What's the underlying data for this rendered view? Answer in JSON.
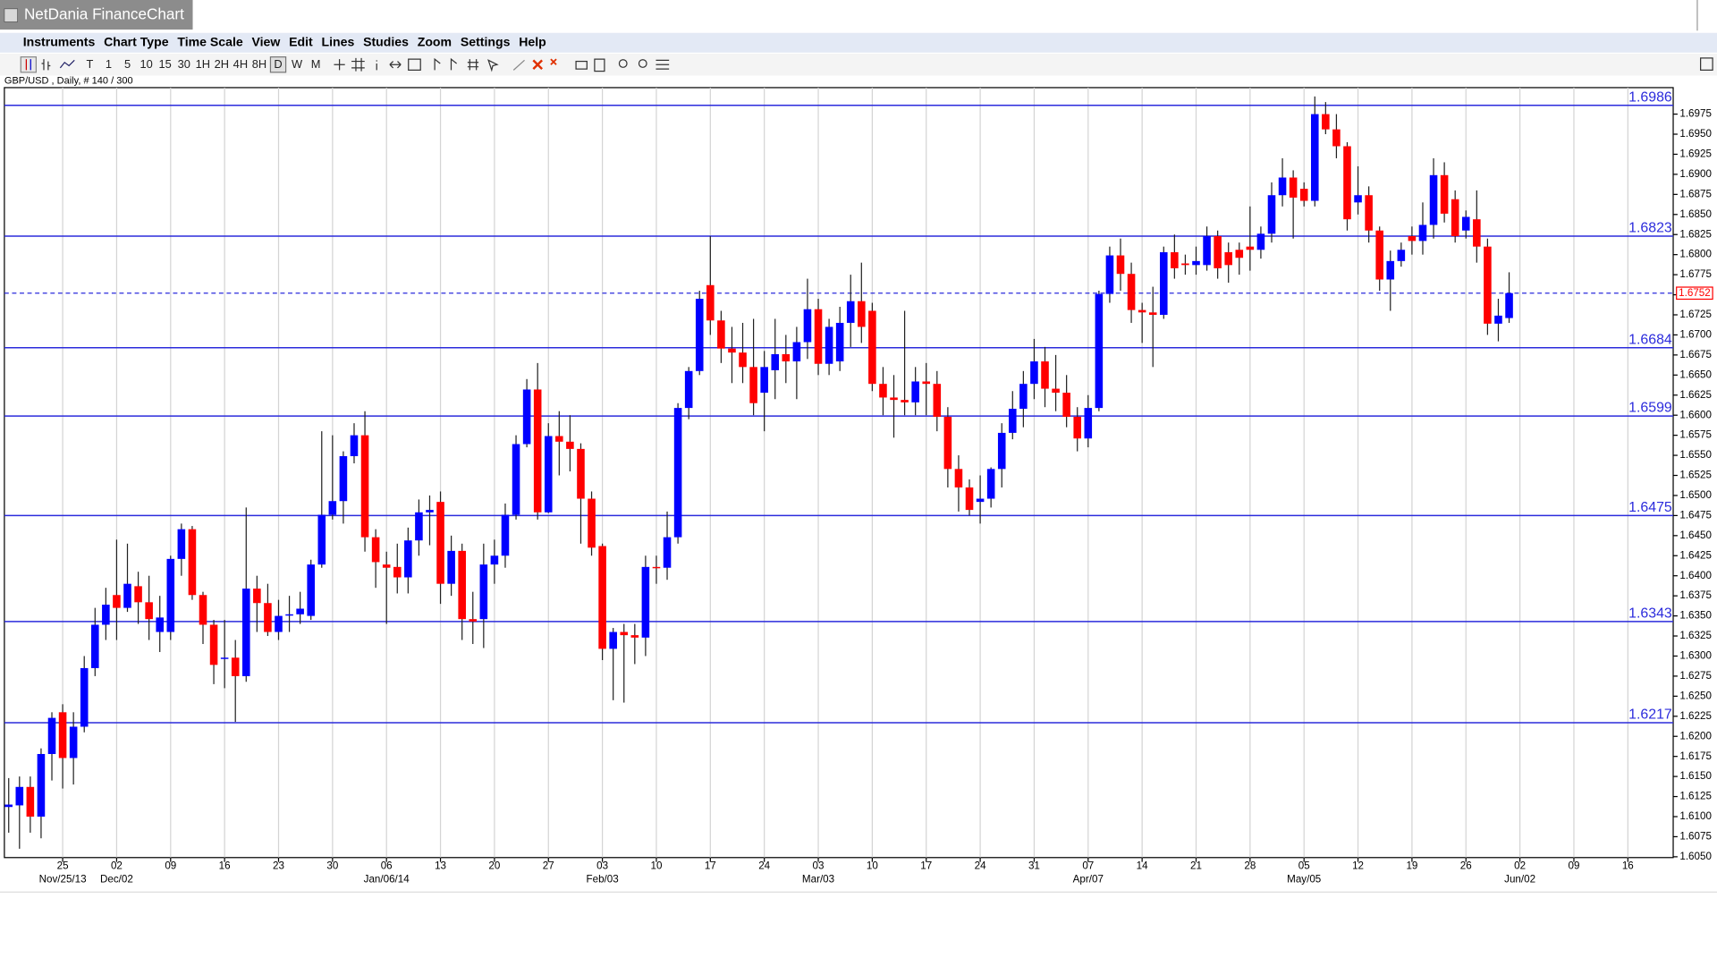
{
  "title_bar": "NetDania FinanceChart",
  "menu": [
    "Instruments",
    "Chart Type",
    "Time Scale",
    "View",
    "Edit",
    "Lines",
    "Studies",
    "Zoom",
    "Settings",
    "Help"
  ],
  "toolbar": [
    "T",
    "1",
    "5",
    "10",
    "15",
    "30",
    "1H",
    "2H",
    "4H",
    "8H",
    "D",
    "W",
    "M"
  ],
  "chart_data": {
    "type": "candlestick",
    "title": "GBP/USD , Daily, # 140 / 300",
    "up_color": "#0000ff",
    "down_color": "#ff0000",
    "line_color": "#2b2bdc",
    "open": [
      1.6112,
      1.6114,
      1.6137,
      1.61,
      1.6178,
      1.623,
      1.6173,
      1.6212,
      1.6285,
      1.6339,
      1.6376,
      1.636,
      1.6387,
      1.6367,
      1.633,
      1.633,
      1.6421,
      1.6458,
      1.6376,
      1.6339,
      1.6298,
      1.6298,
      1.6275,
      1.6384,
      1.6366,
      1.633,
      1.6352,
      1.6352,
      1.635,
      1.6414,
      1.6476,
      1.6493,
      1.6549,
      1.6575,
      1.6448,
      1.6414,
      1.6411,
      1.6398,
      1.6444,
      1.6479,
      1.6492,
      1.639,
      1.6431,
      1.6346,
      1.6346,
      1.6414,
      1.6425,
      1.6476,
      1.6564,
      1.6632,
      1.6479,
      1.6574,
      1.6567,
      1.6558,
      1.6496,
      1.6437,
      1.6309,
      1.633,
      1.6326,
      1.6323,
      1.6411,
      1.641,
      1.6448,
      1.6609,
      1.6655,
      1.6762,
      1.6718,
      1.6683,
      1.6678,
      1.666,
      1.6628,
      1.6656,
      1.6676,
      1.6667,
      1.6691,
      1.6732,
      1.6664,
      1.6667,
      1.6715,
      1.6742,
      1.673,
      1.6639,
      1.6622,
      1.6619,
      1.6616,
      1.6642,
      1.6639,
      1.6598,
      1.6533,
      1.651,
      1.6492,
      1.6496,
      1.6533,
      1.6578,
      1.6608,
      1.6639,
      1.6667,
      1.6633,
      1.6628,
      1.6598,
      1.6571,
      1.6609,
      1.6751,
      1.6799,
      1.6776,
      1.6731,
      1.6728,
      1.6725,
      1.6803,
      1.6789,
      1.6787,
      1.6787,
      1.6823,
      1.6803,
      1.6806,
      1.681,
      1.6806,
      1.6826,
      1.6874,
      1.6896,
      1.6882,
      1.6867,
      1.6975,
      1.6956,
      1.6935,
      1.6865,
      1.6874,
      1.683,
      1.6769,
      1.6792,
      1.6823,
      1.6817,
      1.6837,
      1.6899,
      1.6869,
      1.683,
      1.6844,
      1.681,
      1.6714,
      1.6721
    ],
    "high": [
      1.6148,
      1.615,
      1.615,
      1.6185,
      1.623,
      1.624,
      1.623,
      1.63,
      1.636,
      1.6385,
      1.6445,
      1.644,
      1.6405,
      1.64,
      1.6375,
      1.6425,
      1.6465,
      1.6462,
      1.638,
      1.6345,
      1.6345,
      1.632,
      1.6485,
      1.64,
      1.639,
      1.637,
      1.6375,
      1.638,
      1.642,
      1.658,
      1.6575,
      1.6555,
      1.659,
      1.6605,
      1.6458,
      1.643,
      1.644,
      1.646,
      1.6495,
      1.65,
      1.6505,
      1.645,
      1.644,
      1.638,
      1.644,
      1.6445,
      1.649,
      1.6575,
      1.6645,
      1.6665,
      1.659,
      1.6605,
      1.66,
      1.6565,
      1.6505,
      1.644,
      1.6335,
      1.634,
      1.634,
      1.6425,
      1.6425,
      1.648,
      1.6615,
      1.666,
      1.6755,
      1.6823,
      1.673,
      1.671,
      1.6715,
      1.672,
      1.668,
      1.672,
      1.67,
      1.671,
      1.677,
      1.6745,
      1.672,
      1.6735,
      1.6775,
      1.679,
      1.674,
      1.666,
      1.665,
      1.673,
      1.666,
      1.6665,
      1.6655,
      1.661,
      1.655,
      1.652,
      1.6525,
      1.6535,
      1.659,
      1.663,
      1.6655,
      1.6695,
      1.6685,
      1.6675,
      1.665,
      1.661,
      1.6625,
      1.6755,
      1.681,
      1.682,
      1.679,
      1.674,
      1.676,
      1.681,
      1.6825,
      1.68,
      1.681,
      1.6835,
      1.683,
      1.6815,
      1.6815,
      1.686,
      1.6835,
      1.689,
      1.692,
      1.6905,
      1.689,
      1.6997,
      1.699,
      1.6975,
      1.694,
      1.691,
      1.6885,
      1.6835,
      1.6805,
      1.6815,
      1.6835,
      1.6865,
      1.692,
      1.6915,
      1.688,
      1.6855,
      1.688,
      1.682,
      1.6745,
      1.6778
    ],
    "low": [
      1.608,
      1.606,
      1.608,
      1.6073,
      1.6145,
      1.6135,
      1.614,
      1.6205,
      1.6275,
      1.632,
      1.632,
      1.6355,
      1.634,
      1.632,
      1.6305,
      1.632,
      1.64,
      1.637,
      1.6315,
      1.6265,
      1.626,
      1.6218,
      1.6268,
      1.633,
      1.6325,
      1.632,
      1.633,
      1.634,
      1.6345,
      1.641,
      1.647,
      1.6465,
      1.654,
      1.643,
      1.6385,
      1.634,
      1.6378,
      1.6378,
      1.6425,
      1.6438,
      1.6365,
      1.6375,
      1.632,
      1.6315,
      1.631,
      1.639,
      1.641,
      1.647,
      1.656,
      1.647,
      1.6478,
      1.6525,
      1.653,
      1.644,
      1.6425,
      1.6295,
      1.6245,
      1.6242,
      1.629,
      1.63,
      1.639,
      1.6395,
      1.644,
      1.6595,
      1.665,
      1.67,
      1.6665,
      1.664,
      1.664,
      1.66,
      1.658,
      1.662,
      1.664,
      1.662,
      1.667,
      1.665,
      1.665,
      1.6655,
      1.6685,
      1.669,
      1.663,
      1.66,
      1.6572,
      1.66,
      1.66,
      1.66,
      1.658,
      1.651,
      1.648,
      1.6475,
      1.6465,
      1.6485,
      1.651,
      1.657,
      1.6585,
      1.662,
      1.661,
      1.6605,
      1.6585,
      1.6555,
      1.656,
      1.6605,
      1.674,
      1.6755,
      1.6715,
      1.669,
      1.666,
      1.672,
      1.677,
      1.6775,
      1.6775,
      1.678,
      1.677,
      1.6765,
      1.6775,
      1.678,
      1.6795,
      1.6815,
      1.686,
      1.682,
      1.686,
      1.686,
      1.695,
      1.692,
      1.683,
      1.685,
      1.6815,
      1.6755,
      1.673,
      1.6785,
      1.68,
      1.68,
      1.682,
      1.684,
      1.6815,
      1.682,
      1.679,
      1.67,
      1.6692,
      1.6715
    ],
    "close": [
      1.6115,
      1.6137,
      1.61,
      1.6178,
      1.6223,
      1.6173,
      1.6212,
      1.6285,
      1.6339,
      1.6364,
      1.636,
      1.639,
      1.6367,
      1.6346,
      1.6348,
      1.6421,
      1.6458,
      1.6376,
      1.6339,
      1.6289,
      1.6298,
      1.6275,
      1.6384,
      1.6366,
      1.633,
      1.635,
      1.6352,
      1.6359,
      1.6414,
      1.6476,
      1.6493,
      1.6549,
      1.6575,
      1.6448,
      1.6417,
      1.641,
      1.6398,
      1.6444,
      1.6479,
      1.6482,
      1.639,
      1.6431,
      1.6346,
      1.6343,
      1.6414,
      1.6425,
      1.6476,
      1.6564,
      1.6632,
      1.6479,
      1.6574,
      1.6567,
      1.6558,
      1.6496,
      1.6435,
      1.6309,
      1.633,
      1.6326,
      1.6323,
      1.6411,
      1.641,
      1.6448,
      1.6609,
      1.6655,
      1.6745,
      1.6718,
      1.6683,
      1.6678,
      1.666,
      1.6615,
      1.666,
      1.6676,
      1.6667,
      1.6691,
      1.6732,
      1.6664,
      1.671,
      1.6715,
      1.6742,
      1.671,
      1.6639,
      1.6622,
      1.6619,
      1.6616,
      1.6642,
      1.6639,
      1.6598,
      1.6533,
      1.651,
      1.6482,
      1.6496,
      1.6533,
      1.6578,
      1.6608,
      1.6639,
      1.6667,
      1.6633,
      1.6628,
      1.6598,
      1.6571,
      1.6609,
      1.6751,
      1.6799,
      1.6776,
      1.6731,
      1.6728,
      1.6725,
      1.6803,
      1.6783,
      1.6787,
      1.6792,
      1.6823,
      1.6783,
      1.6787,
      1.6796,
      1.6806,
      1.6826,
      1.6874,
      1.6896,
      1.6871,
      1.6867,
      1.6975,
      1.6956,
      1.6935,
      1.6844,
      1.6874,
      1.683,
      1.6769,
      1.6792,
      1.6806,
      1.6817,
      1.6837,
      1.6899,
      1.6851,
      1.6823,
      1.6847,
      1.681,
      1.6714,
      1.6724,
      1.6752
    ],
    "hlines": [
      1.6986,
      1.6823,
      1.6684,
      1.6599,
      1.6475,
      1.6343,
      1.6217
    ],
    "last_price": 1.6752,
    "xlim": [
      -0.4,
      154.2
    ],
    "ylim": [
      1.6049,
      1.7008
    ],
    "xticks": [
      {
        "value": 5,
        "label": "25"
      },
      {
        "value": 10,
        "label": "02"
      },
      {
        "value": 15,
        "label": "09"
      },
      {
        "value": 20,
        "label": "16"
      },
      {
        "value": 25,
        "label": "23"
      },
      {
        "value": 30,
        "label": "30"
      },
      {
        "value": 35,
        "label": "06"
      },
      {
        "value": 40,
        "label": "13"
      },
      {
        "value": 45,
        "label": "20"
      },
      {
        "value": 50,
        "label": "27"
      },
      {
        "value": 55,
        "label": "03"
      },
      {
        "value": 60,
        "label": "10"
      },
      {
        "value": 65,
        "label": "17"
      },
      {
        "value": 70,
        "label": "24"
      },
      {
        "value": 75,
        "label": "03"
      },
      {
        "value": 80,
        "label": "10"
      },
      {
        "value": 85,
        "label": "17"
      },
      {
        "value": 90,
        "label": "24"
      },
      {
        "value": 95,
        "label": "31"
      },
      {
        "value": 100,
        "label": "07"
      },
      {
        "value": 105,
        "label": "14"
      },
      {
        "value": 110,
        "label": "21"
      },
      {
        "value": 115,
        "label": "28"
      },
      {
        "value": 120,
        "label": "05"
      },
      {
        "value": 125,
        "label": "12"
      },
      {
        "value": 130,
        "label": "19"
      },
      {
        "value": 135,
        "label": "26"
      },
      {
        "value": 140,
        "label": "02"
      },
      {
        "value": 145,
        "label": "09"
      },
      {
        "value": 150,
        "label": "16"
      }
    ],
    "xticks_major": [
      {
        "value": 5,
        "label": "Nov/25/13"
      },
      {
        "value": 10,
        "label": "Dec/02"
      },
      {
        "value": 35,
        "label": "Jan/06/14"
      },
      {
        "value": 55,
        "label": "Feb/03"
      },
      {
        "value": 75,
        "label": "Mar/03"
      },
      {
        "value": 100,
        "label": "Apr/07"
      },
      {
        "value": 120,
        "label": "May/05"
      },
      {
        "value": 140,
        "label": "Jun/02"
      }
    ],
    "yticks": [
      {
        "value": 1.605,
        "label": "1.6050"
      },
      1.6075,
      {
        "value": 1.61,
        "label": "1.6100"
      },
      1.6125,
      {
        "value": 1.615,
        "label": "1.6150"
      },
      1.6175,
      {
        "value": 1.62,
        "label": "1.6200"
      },
      1.6225,
      {
        "value": 1.625,
        "label": "1.6250"
      },
      1.6275,
      {
        "value": 1.63,
        "label": "1.6300"
      },
      1.6325,
      {
        "value": 1.635,
        "label": "1.6350"
      },
      1.6375,
      {
        "value": 1.64,
        "label": "1.6400"
      },
      1.6425,
      {
        "value": 1.645,
        "label": "1.6450"
      },
      1.6475,
      {
        "value": 1.65,
        "label": "1.6500"
      },
      1.6525,
      {
        "value": 1.655,
        "label": "1.6550"
      },
      1.6575,
      {
        "value": 1.66,
        "label": "1.6600"
      },
      1.6625,
      {
        "value": 1.665,
        "label": "1.6650"
      },
      1.6675,
      {
        "value": 1.67,
        "label": "1.6700"
      },
      1.6725,
      {
        "value": 1.675,
        "label": "1.6750"
      },
      1.6775,
      {
        "value": 1.68,
        "label": "1.6800"
      },
      1.6825,
      {
        "value": 1.685,
        "label": "1.6850"
      },
      1.6875,
      {
        "value": 1.69,
        "label": "1.6900"
      },
      1.6925,
      {
        "value": 1.695,
        "label": "1.6950"
      },
      1.6975
    ],
    "grid": true
  }
}
